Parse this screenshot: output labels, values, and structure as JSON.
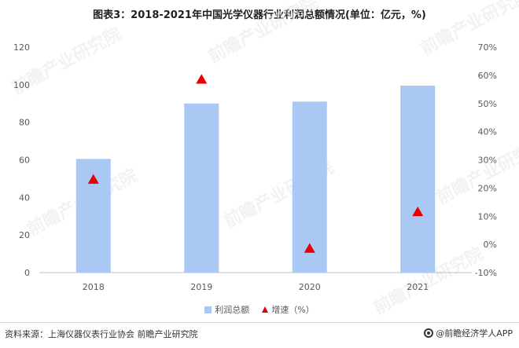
{
  "title": "图表3：2018-2021年中国光学仪器行业利润总额情况(单位：亿元，%)",
  "source": "资料来源：上海仪器仪表行业协会 前瞻产业研究院",
  "brand": "@前瞻经济学人APP",
  "watermark": "前瞻产业研究院",
  "colors": {
    "bar": "#a9c8f3",
    "growth": "#e60000",
    "axis": "#bfbfbf"
  },
  "chart_data": {
    "type": "bar",
    "categories": [
      "2018",
      "2019",
      "2020",
      "2021"
    ],
    "series": [
      {
        "name": "利润总额",
        "type": "bar",
        "axis": "left",
        "values": [
          60.5,
          90,
          91,
          99.5
        ]
      },
      {
        "name": "增速（%）",
        "type": "scatter",
        "marker": "triangle",
        "axis": "right",
        "values": [
          23,
          58.5,
          -1.5,
          11.5
        ]
      }
    ],
    "y_left": {
      "min": 0,
      "max": 120,
      "ticks": [
        0,
        20,
        40,
        60,
        80,
        100,
        120
      ]
    },
    "y_right": {
      "min": -10,
      "max": 70,
      "ticks": [
        "-10%",
        "0%",
        "10%",
        "20%",
        "30%",
        "40%",
        "50%",
        "60%",
        "70%"
      ]
    },
    "legend_position": "bottom",
    "grid": false
  }
}
